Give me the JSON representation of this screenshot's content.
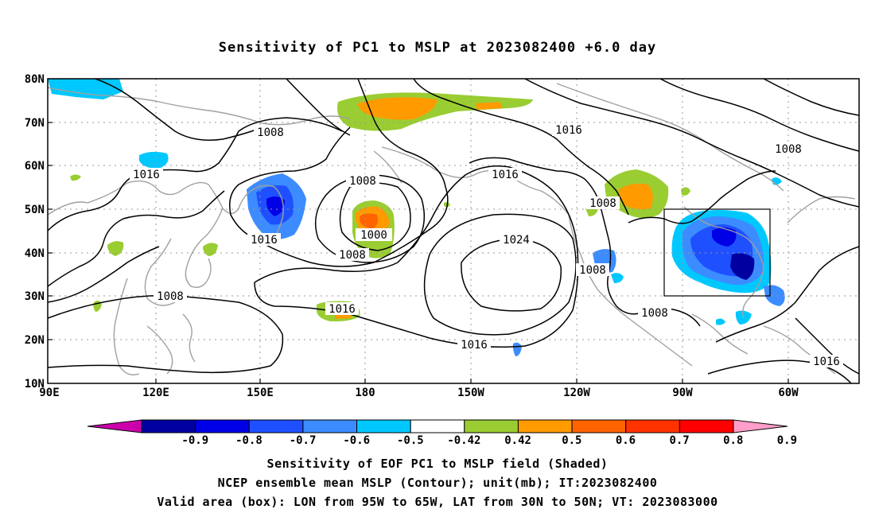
{
  "title": "Sensitivity of PC1 to MSLP at 2023082400 +6.0 day",
  "map": {
    "lat_labels": [
      "80N",
      "70N",
      "60N",
      "50N",
      "40N",
      "30N",
      "20N",
      "10N"
    ],
    "lon_labels": [
      "90E",
      "120E",
      "150E",
      "180",
      "150W",
      "120W",
      "90W",
      "60W"
    ],
    "contour_labels": [
      "1008",
      "1016",
      "1008",
      "1016",
      "1008",
      "1016",
      "1016",
      "1000",
      "1008",
      "1008",
      "1016",
      "1024",
      "1008",
      "1008",
      "1016",
      "1016",
      "1008"
    ],
    "contour_color": "#000000",
    "coastline_color": "#a0a0a0",
    "grid": "dotted",
    "box": {
      "label": "Valid area (box)",
      "lon_from": "95W",
      "lon_to": "65W",
      "lat_from": "30N",
      "lat_to": "50N"
    }
  },
  "colorbar": {
    "labels": [
      "-0.9",
      "-0.8",
      "-0.7",
      "-0.6",
      "-0.5",
      "-0.42",
      "0.42",
      "0.5",
      "0.6",
      "0.7",
      "0.8",
      "0.9"
    ],
    "colors": [
      "#cc00aa",
      "#0000a0",
      "#0000e6",
      "#1e50ff",
      "#3c8cff",
      "#00c8ff",
      "#ffffff",
      "#9acd32",
      "#ff9b00",
      "#ff6400",
      "#ff3200",
      "#ff0000",
      "#ff9ec8"
    ]
  },
  "captions": {
    "line1": "Sensitivity of EOF PC1 to MSLP field (Shaded)",
    "line2": "NCEP ensemble mean MSLP (Contour); unit(mb); IT:2023082400",
    "line3": "Valid area (box): LON from 95W to 65W, LAT from 30N to 50N; VT: 2023083000"
  }
}
